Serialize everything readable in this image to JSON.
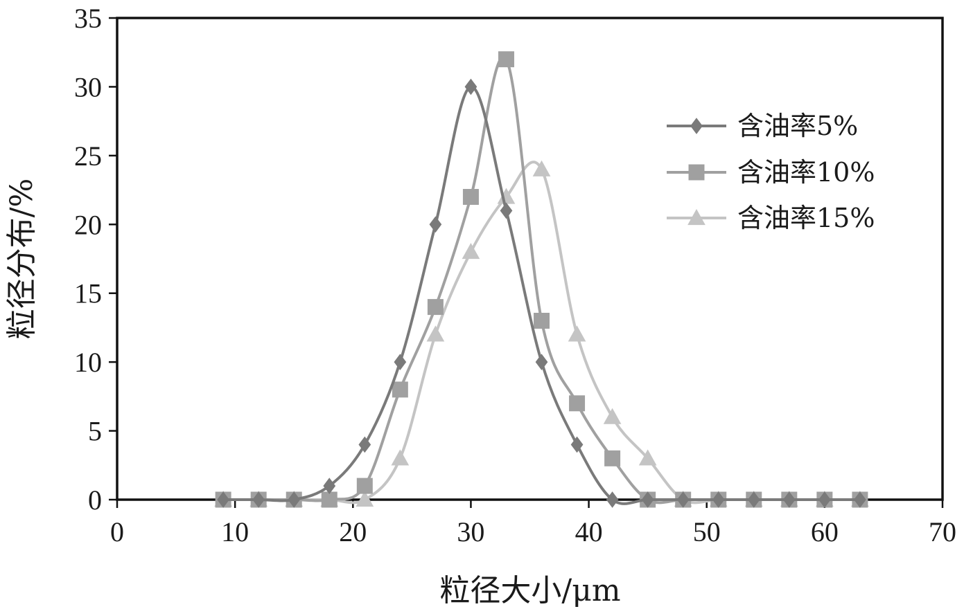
{
  "chart_data": {
    "type": "line",
    "title": "",
    "xlabel": "粒径大小/μm",
    "ylabel": "粒径分布/%",
    "xlim": [
      0,
      70
    ],
    "ylim": [
      0,
      35
    ],
    "xticks": [
      "0",
      "10",
      "20",
      "30",
      "40",
      "50",
      "60",
      "70"
    ],
    "yticks": [
      "0",
      "5",
      "10",
      "15",
      "20",
      "25",
      "30",
      "35"
    ],
    "grid": false,
    "legend_position": "right",
    "smooth": true,
    "series": [
      {
        "name": "含油率5%",
        "marker": "diamond",
        "color": "#7a7a7a",
        "x": [
          9,
          12,
          15,
          18,
          21,
          24,
          27,
          30,
          33,
          36,
          39,
          42,
          45,
          48,
          51,
          54,
          57,
          60,
          63
        ],
        "y": [
          0,
          0,
          0,
          1,
          4,
          10,
          20,
          30,
          21,
          10,
          4,
          0,
          0,
          0,
          0,
          0,
          0,
          0,
          0
        ]
      },
      {
        "name": "含油率10%",
        "marker": "square",
        "color": "#a0a0a0",
        "x": [
          9,
          12,
          15,
          18,
          21,
          24,
          27,
          30,
          33,
          36,
          39,
          42,
          45,
          48,
          51,
          54,
          57,
          60,
          63
        ],
        "y": [
          0,
          0,
          0,
          0,
          1,
          8,
          14,
          22,
          32,
          13,
          7,
          3,
          0,
          0,
          0,
          0,
          0,
          0,
          0
        ]
      },
      {
        "name": "含油率15%",
        "marker": "triangle",
        "color": "#c4c4c4",
        "x": [
          9,
          12,
          15,
          18,
          21,
          24,
          27,
          30,
          33,
          36,
          39,
          42,
          45,
          48,
          51,
          54,
          57,
          60,
          63
        ],
        "y": [
          0,
          0,
          0,
          0,
          0,
          3,
          12,
          18,
          22,
          24,
          12,
          6,
          3,
          0,
          0,
          0,
          0,
          0,
          0
        ]
      }
    ]
  }
}
